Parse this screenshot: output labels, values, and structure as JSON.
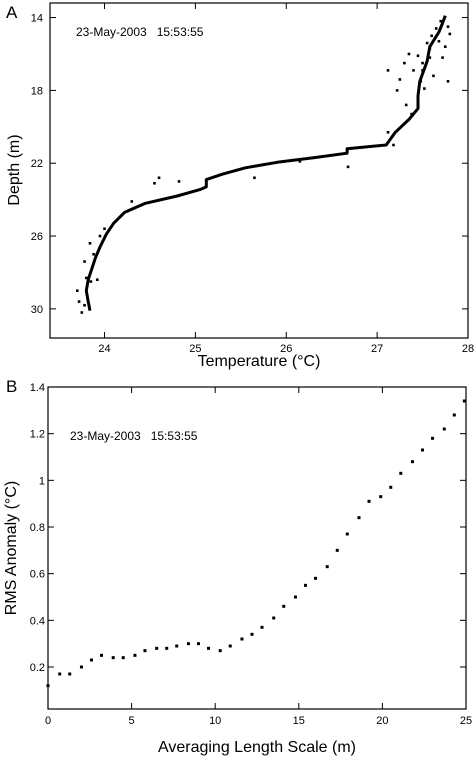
{
  "chart_data": [
    {
      "panel_label": "A",
      "type": "line",
      "annotation": "23-May-2003   15:53:55",
      "xlabel": "Temperature (°C)",
      "ylabel": "Depth (m)",
      "xlim": [
        23.4,
        28
      ],
      "ylim": [
        31.6,
        13.2
      ],
      "y_inverted": true,
      "xticks": [
        24,
        25,
        26,
        27,
        28
      ],
      "yticks": [
        14,
        18,
        22,
        26,
        30
      ],
      "grid": false,
      "series": [
        {
          "style": "line",
          "points": [
            [
              23.84,
              30.1
            ],
            [
              23.82,
              29.6
            ],
            [
              23.8,
              29.0
            ],
            [
              23.82,
              28.4
            ],
            [
              23.86,
              27.8
            ],
            [
              23.9,
              27.2
            ],
            [
              23.95,
              26.6
            ],
            [
              24.02,
              25.9
            ],
            [
              24.1,
              25.3
            ],
            [
              24.22,
              24.7
            ],
            [
              24.45,
              24.2
            ],
            [
              24.8,
              23.8
            ],
            [
              25.05,
              23.45
            ],
            [
              25.12,
              23.3
            ],
            [
              25.12,
              22.9
            ],
            [
              25.3,
              22.6
            ],
            [
              25.55,
              22.25
            ],
            [
              25.9,
              21.95
            ],
            [
              26.3,
              21.7
            ],
            [
              26.67,
              21.45
            ],
            [
              26.67,
              21.2
            ],
            [
              27.1,
              21.0
            ],
            [
              27.2,
              20.3
            ],
            [
              27.35,
              19.6
            ],
            [
              27.45,
              19.0
            ],
            [
              27.45,
              18.3
            ],
            [
              27.47,
              17.5
            ],
            [
              27.55,
              16.4
            ],
            [
              27.58,
              15.6
            ],
            [
              27.68,
              14.8
            ],
            [
              27.72,
              14.3
            ],
            [
              27.75,
              13.9
            ]
          ]
        },
        {
          "style": "points",
          "points": [
            [
              23.7,
              29.0
            ],
            [
              23.72,
              29.6
            ],
            [
              23.75,
              30.2
            ],
            [
              23.78,
              29.8
            ],
            [
              23.8,
              28.3
            ],
            [
              23.85,
              28.5
            ],
            [
              23.92,
              28.4
            ],
            [
              23.88,
              27.0
            ],
            [
              23.78,
              27.4
            ],
            [
              23.84,
              26.4
            ],
            [
              23.95,
              26.0
            ],
            [
              24.0,
              25.6
            ],
            [
              24.3,
              24.1
            ],
            [
              24.55,
              23.1
            ],
            [
              24.6,
              22.8
            ],
            [
              24.82,
              23.0
            ],
            [
              25.65,
              22.8
            ],
            [
              26.15,
              21.9
            ],
            [
              26.68,
              22.2
            ],
            [
              27.12,
              16.9
            ],
            [
              27.12,
              20.3
            ],
            [
              27.18,
              21.0
            ],
            [
              27.22,
              18.0
            ],
            [
              27.25,
              17.4
            ],
            [
              27.3,
              16.5
            ],
            [
              27.32,
              18.8
            ],
            [
              27.35,
              16.0
            ],
            [
              27.38,
              19.3
            ],
            [
              27.4,
              16.9
            ],
            [
              27.45,
              16.1
            ],
            [
              27.48,
              17.5
            ],
            [
              27.5,
              16.5
            ],
            [
              27.52,
              17.9
            ],
            [
              27.55,
              15.4
            ],
            [
              27.58,
              16.2
            ],
            [
              27.6,
              15.0
            ],
            [
              27.62,
              17.2
            ],
            [
              27.65,
              14.6
            ],
            [
              27.68,
              15.3
            ],
            [
              27.7,
              14.2
            ],
            [
              27.72,
              16.2
            ],
            [
              27.75,
              15.6
            ],
            [
              27.78,
              14.5
            ],
            [
              27.8,
              14.9
            ],
            [
              27.78,
              17.5
            ],
            [
              27.58,
              15.7
            ],
            [
              27.5,
              16.9
            ]
          ]
        }
      ]
    },
    {
      "panel_label": "B",
      "type": "scatter",
      "annotation": "23-May-2003   15:53:55",
      "xlabel": "Averaging Length Scale (m)",
      "ylabel": "RMS Anomaly (°C)",
      "xlim": [
        0,
        25
      ],
      "ylim": [
        0.02,
        1.4
      ],
      "xticks": [
        0,
        5,
        10,
        15,
        20,
        25
      ],
      "yticks": [
        0.2,
        0.4,
        0.6,
        0.8,
        1,
        1.2,
        1.4
      ],
      "grid": false,
      "x": [
        0,
        0.7,
        1.3,
        2,
        2.6,
        3.2,
        3.9,
        4.5,
        5.2,
        5.8,
        6.5,
        7.1,
        7.7,
        8.4,
        9,
        9.6,
        10.3,
        10.9,
        11.6,
        12.2,
        12.8,
        13.5,
        14.1,
        14.8,
        15.4,
        16,
        16.7,
        17.3,
        17.9,
        18.6,
        19.2,
        19.9,
        20.5,
        21.1,
        21.8,
        22.4,
        23,
        23.7,
        24.3,
        24.9
      ],
      "y": [
        0.12,
        0.17,
        0.17,
        0.2,
        0.23,
        0.25,
        0.24,
        0.24,
        0.25,
        0.27,
        0.28,
        0.28,
        0.29,
        0.3,
        0.3,
        0.28,
        0.27,
        0.29,
        0.32,
        0.34,
        0.37,
        0.41,
        0.46,
        0.5,
        0.55,
        0.58,
        0.63,
        0.7,
        0.77,
        0.84,
        0.91,
        0.93,
        0.97,
        1.03,
        1.08,
        1.13,
        1.18,
        1.22,
        1.28,
        1.34
      ]
    }
  ]
}
